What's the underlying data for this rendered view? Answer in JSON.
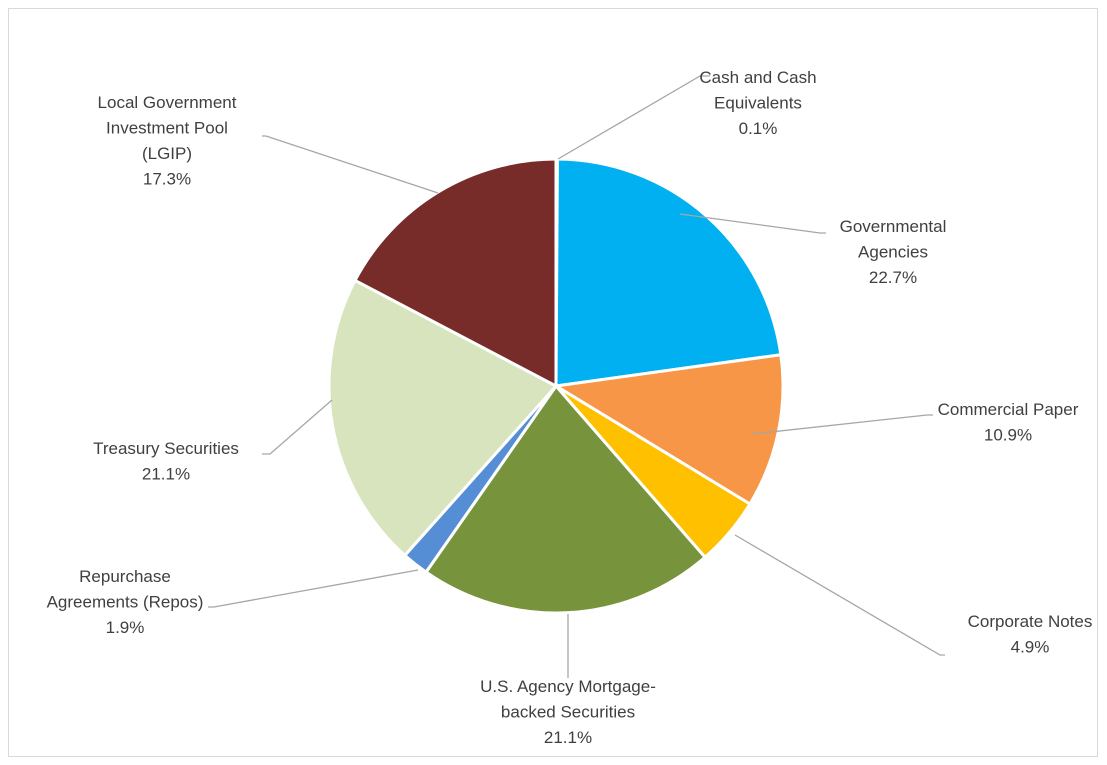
{
  "chart_data": {
    "type": "pie",
    "title": "",
    "start_angle_deg": 0,
    "direction": "clockwise",
    "slices": [
      {
        "label_lines": [
          "Cash and Cash",
          "Equivalents"
        ],
        "value": 0.1,
        "value_label": "0.1%",
        "color": "#5b9bd5"
      },
      {
        "label_lines": [
          "Governmental",
          "Agencies"
        ],
        "value": 22.7,
        "value_label": "22.7%",
        "color": "#00b0f0"
      },
      {
        "label_lines": [
          "Commercial Paper"
        ],
        "value": 10.9,
        "value_label": "10.9%",
        "color": "#f79646"
      },
      {
        "label_lines": [
          "Corporate Notes"
        ],
        "value": 4.9,
        "value_label": "4.9%",
        "color": "#ffc000"
      },
      {
        "label_lines": [
          "U.S. Agency Mortgage-",
          "backed Securities"
        ],
        "value": 21.1,
        "value_label": "21.1%",
        "color": "#77933c"
      },
      {
        "label_lines": [
          "Repurchase",
          "Agreements (Repos)"
        ],
        "value": 1.9,
        "value_label": "1.9%",
        "color": "#558ed5"
      },
      {
        "label_lines": [
          "Treasury Securities"
        ],
        "value": 21.1,
        "value_label": "21.1%",
        "color": "#d7e4bd"
      },
      {
        "label_lines": [
          "Local Government",
          "Investment Pool",
          "(LGIP)"
        ],
        "value": 17.3,
        "value_label": "17.3%",
        "color": "#772c2a"
      }
    ],
    "legend": "none",
    "data_labels": "outside with leader lines"
  }
}
